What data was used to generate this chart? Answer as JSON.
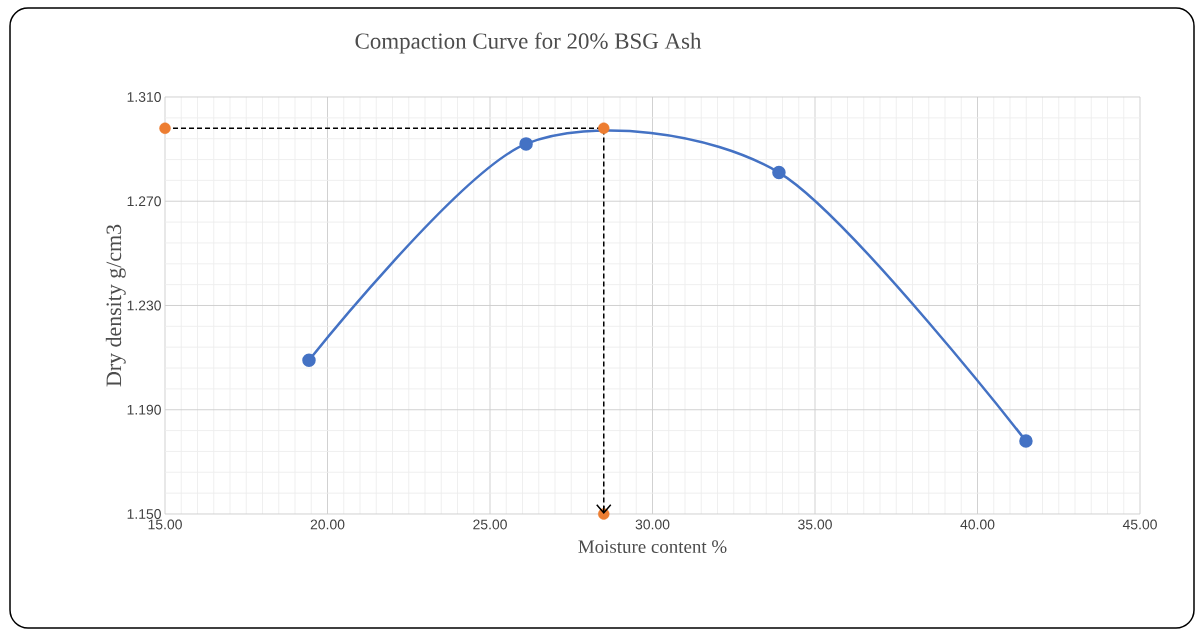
{
  "chart_data": {
    "type": "line",
    "title": "Compaction Curve for 20% BSG Ash",
    "xlabel": "Moisture content %",
    "ylabel": "Dry density g/cm3",
    "xlim": [
      15,
      45
    ],
    "ylim": [
      1.15,
      1.31
    ],
    "xticks": [
      {
        "value": 15,
        "label": "15.00"
      },
      {
        "value": 20,
        "label": "20.00"
      },
      {
        "value": 25,
        "label": "25.00"
      },
      {
        "value": 30,
        "label": "30.00"
      },
      {
        "value": 35,
        "label": "35.00"
      },
      {
        "value": 40,
        "label": "40.00"
      },
      {
        "value": 45,
        "label": "45.00"
      }
    ],
    "yticks": [
      {
        "value": 1.15,
        "label": "1.150"
      },
      {
        "value": 1.19,
        "label": "1.190"
      },
      {
        "value": 1.23,
        "label": "1.230"
      },
      {
        "value": 1.27,
        "label": "1.270"
      },
      {
        "value": 1.31,
        "label": "1.310"
      }
    ],
    "grid": true,
    "series": [
      {
        "color": "#4472c4",
        "marker": "circle",
        "line_style": "solid",
        "x": [
          19.43,
          26.11,
          33.89,
          41.49
        ],
        "values": [
          1.209,
          1.292,
          1.281,
          1.178
        ]
      },
      {
        "color": "#000000",
        "marker": "none",
        "line_style": "dashed",
        "x": [
          15,
          28.5,
          28.5
        ],
        "values": [
          1.298,
          1.298,
          1.15
        ]
      },
      {
        "type": "scatter",
        "color": "#ed7d31",
        "marker": "circle",
        "x": [
          15,
          28.5,
          28.5
        ],
        "values": [
          1.298,
          1.298,
          1.15
        ]
      }
    ]
  }
}
